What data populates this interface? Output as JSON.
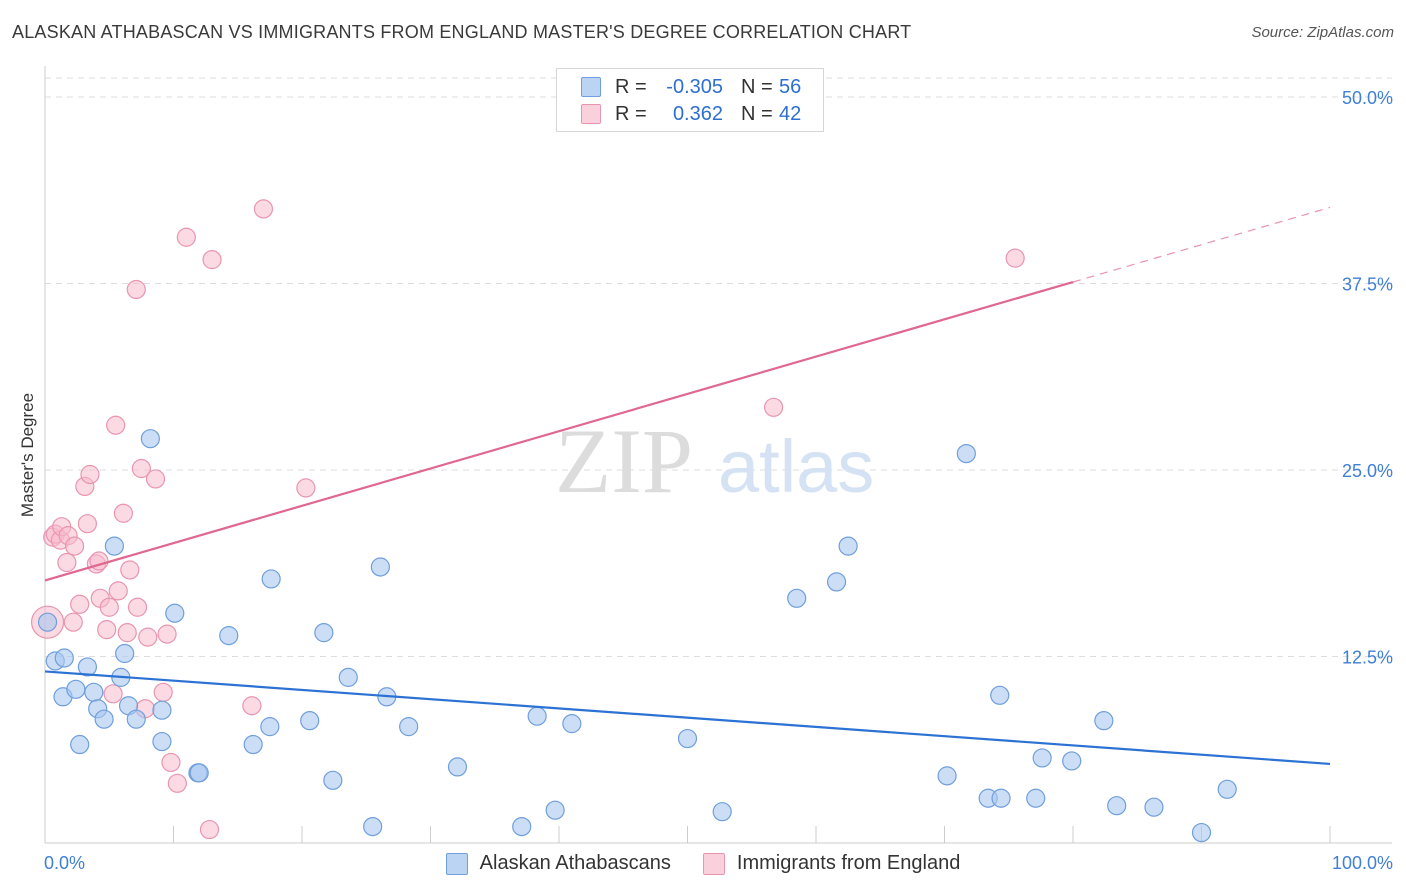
{
  "header": {
    "title": "ALASKAN ATHABASCAN VS IMMIGRANTS FROM ENGLAND MASTER'S DEGREE CORRELATION CHART",
    "source": "Source: ZipAtlas.com"
  },
  "legend": {
    "r_label": "R =",
    "n_label": "N =",
    "series": [
      {
        "r": "-0.305",
        "n": "56"
      },
      {
        "r": "0.362",
        "n": "42"
      }
    ]
  },
  "bottom_legend": [
    "Alaskan Athabascans",
    "Immigrants from England"
  ],
  "colors": {
    "blue_fill": "#a9c8f0",
    "blue_stroke": "#6f9fdc",
    "blue_line": "#2c72d4",
    "pink_fill": "#f7bccd",
    "pink_stroke": "#e995b0",
    "pink_line": "#e0678f",
    "grid": "#dddddd",
    "tick_text": "#3f7fd6"
  },
  "chart_data": {
    "type": "scatter",
    "title": "ALASKAN ATHABASCAN VS IMMIGRANTS FROM ENGLAND MASTER'S DEGREE CORRELATION CHART",
    "xlabel": "",
    "ylabel": "Master's Degree",
    "xlim": [
      0,
      100
    ],
    "ylim": [
      0,
      50
    ],
    "x_tick_labels": [
      "0.0%",
      "100.0%"
    ],
    "y_ticks": [
      12.5,
      25.0,
      37.5,
      50.0
    ],
    "y_tick_labels": [
      "12.5%",
      "25.0%",
      "37.5%",
      "50.0%"
    ],
    "grid": true,
    "watermark": "ZIPatlas",
    "series": [
      {
        "name": "Alaskan Athabascans",
        "r": -0.305,
        "n": 56,
        "trend": {
          "x0": 0,
          "y0": 11.5,
          "x1": 100,
          "y1": 5.3
        },
        "points": [
          [
            0.2,
            14.8
          ],
          [
            0.8,
            12.2
          ],
          [
            1.5,
            12.4
          ],
          [
            1.4,
            9.8
          ],
          [
            2.4,
            10.3
          ],
          [
            2.7,
            6.6
          ],
          [
            3.3,
            11.8
          ],
          [
            3.8,
            10.1
          ],
          [
            4.1,
            9.0
          ],
          [
            4.6,
            8.3
          ],
          [
            5.4,
            19.9
          ],
          [
            5.9,
            11.1
          ],
          [
            6.2,
            12.7
          ],
          [
            6.5,
            9.2
          ],
          [
            7.1,
            8.3
          ],
          [
            8.2,
            27.1
          ],
          [
            9.1,
            8.9
          ],
          [
            9.1,
            6.8
          ],
          [
            10.1,
            15.4
          ],
          [
            11.9,
            4.7
          ],
          [
            12.0,
            4.7
          ],
          [
            14.3,
            13.9
          ],
          [
            16.2,
            6.6
          ],
          [
            17.5,
            7.8
          ],
          [
            17.6,
            17.7
          ],
          [
            20.6,
            8.2
          ],
          [
            21.7,
            14.1
          ],
          [
            22.4,
            4.2
          ],
          [
            23.6,
            11.1
          ],
          [
            25.5,
            1.1
          ],
          [
            26.1,
            18.5
          ],
          [
            26.6,
            9.8
          ],
          [
            28.3,
            7.8
          ],
          [
            32.1,
            5.1
          ],
          [
            37.1,
            1.1
          ],
          [
            38.3,
            8.5
          ],
          [
            39.7,
            2.2
          ],
          [
            41.0,
            8.0
          ],
          [
            50.0,
            7.0
          ],
          [
            52.7,
            2.1
          ],
          [
            58.5,
            16.4
          ],
          [
            61.6,
            17.5
          ],
          [
            62.5,
            19.9
          ],
          [
            70.2,
            4.5
          ],
          [
            71.7,
            26.1
          ],
          [
            73.4,
            3.0
          ],
          [
            74.4,
            3.0
          ],
          [
            74.3,
            9.9
          ],
          [
            77.1,
            3.0
          ],
          [
            77.6,
            5.7
          ],
          [
            79.9,
            5.5
          ],
          [
            82.4,
            8.2
          ],
          [
            83.4,
            2.5
          ],
          [
            86.3,
            2.4
          ],
          [
            90.0,
            0.7
          ],
          [
            92.0,
            3.6
          ]
        ]
      },
      {
        "name": "Immigrants from England",
        "r": 0.362,
        "n": 42,
        "trend": {
          "x0": 0,
          "y0": 17.6,
          "x1": 80,
          "y1": 37.6,
          "dashed_to": {
            "x": 100,
            "y": 42.6
          }
        },
        "points": [
          [
            0.2,
            14.8
          ],
          [
            0.6,
            20.5
          ],
          [
            0.8,
            20.7
          ],
          [
            1.2,
            20.3
          ],
          [
            1.3,
            21.2
          ],
          [
            1.7,
            18.8
          ],
          [
            1.8,
            20.6
          ],
          [
            2.2,
            14.8
          ],
          [
            2.3,
            19.9
          ],
          [
            2.7,
            16.0
          ],
          [
            3.1,
            23.9
          ],
          [
            3.3,
            21.4
          ],
          [
            3.5,
            24.7
          ],
          [
            4.0,
            18.7
          ],
          [
            4.2,
            18.9
          ],
          [
            4.3,
            16.4
          ],
          [
            4.8,
            14.3
          ],
          [
            5.0,
            15.8
          ],
          [
            5.3,
            10.0
          ],
          [
            5.5,
            28.0
          ],
          [
            5.7,
            16.9
          ],
          [
            6.1,
            22.1
          ],
          [
            6.4,
            14.1
          ],
          [
            6.6,
            18.3
          ],
          [
            7.1,
            37.1
          ],
          [
            7.2,
            15.8
          ],
          [
            7.5,
            25.1
          ],
          [
            7.8,
            9.0
          ],
          [
            8.0,
            13.8
          ],
          [
            8.6,
            24.4
          ],
          [
            9.2,
            10.1
          ],
          [
            9.5,
            14.0
          ],
          [
            9.8,
            5.4
          ],
          [
            10.3,
            4.0
          ],
          [
            11.0,
            40.6
          ],
          [
            12.8,
            0.9
          ],
          [
            13.0,
            39.1
          ],
          [
            16.1,
            9.2
          ],
          [
            17.0,
            42.5
          ],
          [
            20.3,
            23.8
          ],
          [
            56.7,
            29.2
          ],
          [
            75.5,
            39.2
          ]
        ]
      }
    ]
  }
}
